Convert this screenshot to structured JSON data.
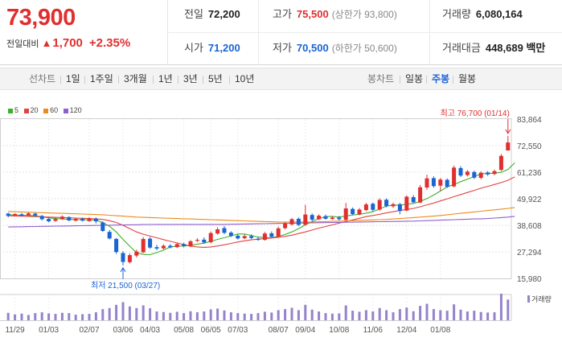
{
  "quote": {
    "current_price": "73,900",
    "change_label": "전일대비",
    "change_arrow": "▲",
    "change_value": "1,700",
    "change_pct": "+2.35%"
  },
  "stats": {
    "prev_close": {
      "label": "전일",
      "value": "72,200"
    },
    "open": {
      "label": "시가",
      "value": "71,200"
    },
    "high": {
      "label": "고가",
      "value": "75,500",
      "sub": "(상한가 93,800)"
    },
    "low": {
      "label": "저가",
      "value": "70,500",
      "sub": "(하한가 50,600)"
    },
    "volume": {
      "label": "거래량",
      "value": "6,080,164"
    },
    "amount": {
      "label": "거래대금",
      "value": "448,689",
      "unit": "백만"
    }
  },
  "periods": {
    "line_label": "선차트",
    "line_items": [
      "1일",
      "1주일",
      "3개월",
      "1년",
      "3년",
      "5년",
      "10년"
    ],
    "candle_label": "봉차트",
    "candle_items": [
      "일봉",
      "주봉",
      "월봉"
    ],
    "selected": "주봉"
  },
  "legend": [
    {
      "label": "5",
      "color": "#3cb02e"
    },
    {
      "label": "20",
      "color": "#e34242"
    },
    {
      "label": "60",
      "color": "#ee8a1c"
    },
    {
      "label": "120",
      "color": "#8f5fcf"
    }
  ],
  "colors": {
    "up": "#e12f2f",
    "down": "#1a64d4",
    "volume": "#9583cc"
  },
  "chart_data": {
    "type": "candlestick",
    "title": "",
    "y_ticks": [
      "83,864",
      "72,550",
      "61,236",
      "49,922",
      "38,608",
      "27,294",
      "15,980"
    ],
    "ylim": [
      15980,
      83864
    ],
    "x_labels": [
      "11/29",
      "01/03",
      "02/07",
      "03/06",
      "04/03",
      "05/08",
      "06/05",
      "07/03",
      "08/07",
      "09/04",
      "10/08",
      "11/06",
      "12/04",
      "01/08"
    ],
    "max_annotation": "최고 76,700 (01/14)",
    "min_annotation": "최저 21,500 (03/27)",
    "volume_label": "거래량",
    "candles": [
      {
        "o": 43600,
        "c": 42600,
        "h": 44000,
        "l": 42000,
        "v": 0.28
      },
      {
        "o": 42800,
        "c": 43400,
        "h": 43800,
        "l": 42400,
        "v": 0.22
      },
      {
        "o": 43300,
        "c": 42700,
        "h": 43900,
        "l": 42300,
        "v": 0.25
      },
      {
        "o": 42900,
        "c": 43700,
        "h": 44100,
        "l": 42600,
        "v": 0.2
      },
      {
        "o": 43600,
        "c": 42800,
        "h": 44000,
        "l": 42200,
        "v": 0.27
      },
      {
        "o": 42600,
        "c": 41200,
        "h": 43000,
        "l": 40600,
        "v": 0.3
      },
      {
        "o": 41300,
        "c": 40300,
        "h": 41800,
        "l": 39900,
        "v": 0.26
      },
      {
        "o": 40500,
        "c": 41300,
        "h": 41900,
        "l": 40100,
        "v": 0.24
      },
      {
        "o": 41200,
        "c": 42300,
        "h": 42800,
        "l": 40900,
        "v": 0.28
      },
      {
        "o": 42100,
        "c": 40700,
        "h": 42500,
        "l": 40300,
        "v": 0.27
      },
      {
        "o": 40600,
        "c": 41400,
        "h": 41800,
        "l": 40200,
        "v": 0.21
      },
      {
        "o": 41400,
        "c": 40600,
        "h": 41900,
        "l": 40200,
        "v": 0.23
      },
      {
        "o": 40400,
        "c": 41500,
        "h": 42000,
        "l": 40100,
        "v": 0.24
      },
      {
        "o": 41400,
        "c": 40300,
        "h": 41900,
        "l": 39400,
        "v": 0.3
      },
      {
        "o": 39800,
        "c": 36200,
        "h": 40300,
        "l": 35800,
        "v": 0.42
      },
      {
        "o": 35800,
        "c": 33000,
        "h": 36600,
        "l": 32600,
        "v": 0.46
      },
      {
        "o": 32800,
        "c": 27200,
        "h": 33200,
        "l": 26400,
        "v": 0.58
      },
      {
        "o": 26800,
        "c": 23000,
        "h": 27600,
        "l": 21500,
        "v": 0.68
      },
      {
        "o": 22900,
        "c": 25900,
        "h": 26700,
        "l": 22300,
        "v": 0.52
      },
      {
        "o": 25700,
        "c": 27400,
        "h": 28200,
        "l": 24900,
        "v": 0.46
      },
      {
        "o": 27100,
        "c": 32800,
        "h": 33600,
        "l": 26800,
        "v": 0.56
      },
      {
        "o": 32900,
        "c": 29100,
        "h": 33600,
        "l": 28600,
        "v": 0.45
      },
      {
        "o": 29300,
        "c": 28700,
        "h": 30300,
        "l": 28000,
        "v": 0.33
      },
      {
        "o": 28800,
        "c": 29900,
        "h": 30500,
        "l": 28300,
        "v": 0.31
      },
      {
        "o": 29900,
        "c": 29200,
        "h": 30600,
        "l": 28700,
        "v": 0.28
      },
      {
        "o": 29300,
        "c": 30600,
        "h": 31100,
        "l": 28900,
        "v": 0.32
      },
      {
        "o": 30600,
        "c": 29800,
        "h": 31200,
        "l": 29200,
        "v": 0.27
      },
      {
        "o": 29600,
        "c": 31800,
        "h": 32300,
        "l": 29300,
        "v": 0.34
      },
      {
        "o": 32000,
        "c": 32400,
        "h": 33100,
        "l": 31500,
        "v": 0.3
      },
      {
        "o": 32500,
        "c": 31300,
        "h": 33500,
        "l": 30800,
        "v": 0.33
      },
      {
        "o": 31400,
        "c": 35300,
        "h": 36000,
        "l": 30900,
        "v": 0.41
      },
      {
        "o": 35100,
        "c": 36900,
        "h": 37800,
        "l": 34600,
        "v": 0.44
      },
      {
        "o": 37400,
        "c": 35400,
        "h": 38300,
        "l": 34900,
        "v": 0.37
      },
      {
        "o": 35500,
        "c": 34100,
        "h": 36100,
        "l": 33600,
        "v": 0.3
      },
      {
        "o": 34200,
        "c": 33000,
        "h": 34800,
        "l": 32600,
        "v": 0.27
      },
      {
        "o": 33100,
        "c": 34000,
        "h": 34700,
        "l": 32700,
        "v": 0.25
      },
      {
        "o": 34000,
        "c": 33200,
        "h": 34800,
        "l": 32700,
        "v": 0.24
      },
      {
        "o": 32900,
        "c": 32400,
        "h": 33600,
        "l": 32000,
        "v": 0.27
      },
      {
        "o": 32400,
        "c": 35100,
        "h": 35800,
        "l": 32100,
        "v": 0.32
      },
      {
        "o": 35200,
        "c": 33700,
        "h": 36000,
        "l": 33300,
        "v": 0.29
      },
      {
        "o": 33800,
        "c": 37300,
        "h": 38000,
        "l": 33500,
        "v": 0.38
      },
      {
        "o": 37400,
        "c": 39300,
        "h": 40100,
        "l": 36900,
        "v": 0.42
      },
      {
        "o": 39000,
        "c": 41200,
        "h": 41800,
        "l": 38500,
        "v": 0.47
      },
      {
        "o": 41400,
        "c": 38800,
        "h": 41900,
        "l": 38300,
        "v": 0.38
      },
      {
        "o": 38900,
        "c": 43200,
        "h": 47300,
        "l": 38500,
        "v": 0.58
      },
      {
        "o": 43000,
        "c": 41000,
        "h": 43700,
        "l": 40200,
        "v": 0.4
      },
      {
        "o": 41200,
        "c": 42700,
        "h": 43300,
        "l": 40800,
        "v": 0.33
      },
      {
        "o": 42500,
        "c": 41400,
        "h": 43200,
        "l": 41000,
        "v": 0.27
      },
      {
        "o": 41300,
        "c": 41900,
        "h": 42600,
        "l": 40900,
        "v": 0.25
      },
      {
        "o": 41900,
        "c": 41200,
        "h": 42600,
        "l": 40700,
        "v": 0.26
      },
      {
        "o": 40900,
        "c": 45800,
        "h": 48100,
        "l": 40600,
        "v": 0.56
      },
      {
        "o": 45600,
        "c": 43400,
        "h": 46200,
        "l": 42900,
        "v": 0.36
      },
      {
        "o": 43200,
        "c": 45300,
        "h": 46000,
        "l": 42900,
        "v": 0.32
      },
      {
        "o": 45100,
        "c": 47500,
        "h": 48200,
        "l": 44600,
        "v": 0.38
      },
      {
        "o": 47800,
        "c": 45200,
        "h": 48300,
        "l": 44600,
        "v": 0.33
      },
      {
        "o": 45300,
        "c": 49400,
        "h": 50100,
        "l": 44800,
        "v": 0.46
      },
      {
        "o": 49500,
        "c": 46800,
        "h": 50100,
        "l": 46200,
        "v": 0.38
      },
      {
        "o": 46700,
        "c": 47600,
        "h": 48300,
        "l": 46000,
        "v": 0.3
      },
      {
        "o": 47600,
        "c": 44700,
        "h": 48200,
        "l": 43300,
        "v": 0.42
      },
      {
        "o": 44900,
        "c": 50800,
        "h": 51400,
        "l": 44600,
        "v": 0.48
      },
      {
        "o": 50600,
        "c": 48400,
        "h": 51500,
        "l": 48100,
        "v": 0.34
      },
      {
        "o": 48300,
        "c": 54800,
        "h": 55800,
        "l": 48000,
        "v": 0.54
      },
      {
        "o": 54700,
        "c": 58600,
        "h": 60200,
        "l": 53800,
        "v": 0.62
      },
      {
        "o": 58700,
        "c": 55300,
        "h": 59500,
        "l": 54600,
        "v": 0.42
      },
      {
        "o": 55500,
        "c": 58100,
        "h": 58800,
        "l": 53300,
        "v": 0.38
      },
      {
        "o": 58000,
        "c": 55000,
        "h": 58600,
        "l": 54500,
        "v": 0.36
      },
      {
        "o": 55200,
        "c": 63200,
        "h": 64100,
        "l": 54800,
        "v": 0.6
      },
      {
        "o": 63000,
        "c": 59800,
        "h": 63800,
        "l": 59200,
        "v": 0.4
      },
      {
        "o": 60000,
        "c": 61500,
        "h": 62200,
        "l": 59400,
        "v": 0.33
      },
      {
        "o": 61300,
        "c": 58900,
        "h": 61900,
        "l": 58300,
        "v": 0.36
      },
      {
        "o": 58800,
        "c": 61000,
        "h": 61600,
        "l": 58200,
        "v": 0.31
      },
      {
        "o": 61100,
        "c": 60300,
        "h": 61700,
        "l": 59700,
        "v": 0.29
      },
      {
        "o": 60500,
        "c": 61700,
        "h": 62300,
        "l": 59900,
        "v": 0.3
      },
      {
        "o": 62200,
        "c": 68200,
        "h": 69000,
        "l": 61700,
        "v": 1.0
      },
      {
        "o": 70500,
        "c": 73900,
        "h": 76700,
        "l": 70400,
        "v": 0.78
      }
    ],
    "ma": {
      "5": [
        43100,
        43000,
        42900,
        42800,
        42700,
        42200,
        41800,
        41500,
        41300,
        41100,
        41000,
        41000,
        40900,
        40800,
        39800,
        38200,
        35800,
        32600,
        29700,
        27000,
        26200,
        26100,
        27000,
        28000,
        29400,
        29700,
        29800,
        30100,
        30600,
        31000,
        31800,
        32600,
        33300,
        34100,
        34900,
        34900,
        34300,
        33600,
        33400,
        33300,
        33900,
        34700,
        35800,
        37200,
        38800,
        40200,
        41500,
        42300,
        42400,
        42100,
        42600,
        43000,
        43300,
        43800,
        44400,
        45600,
        46800,
        47200,
        47200,
        47600,
        47900,
        48800,
        50000,
        51500,
        53200,
        55000,
        56000,
        57200,
        58300,
        59400,
        60500,
        60700,
        60800,
        61200,
        62400,
        65200
      ],
      "20": [
        42700,
        42600,
        42500,
        42400,
        42300,
        42200,
        42100,
        42000,
        41900,
        41800,
        41700,
        41600,
        41500,
        41400,
        41100,
        40600,
        39800,
        38600,
        37200,
        35800,
        34800,
        34000,
        33300,
        32500,
        31800,
        31100,
        30400,
        29800,
        29400,
        29200,
        29400,
        29800,
        30300,
        30900,
        31500,
        32000,
        32400,
        32700,
        33000,
        33200,
        33500,
        33900,
        34400,
        35100,
        35800,
        36600,
        37400,
        38100,
        38800,
        39500,
        40200,
        40900,
        41600,
        42300,
        42800,
        43300,
        43900,
        44400,
        44900,
        45300,
        45800,
        46500,
        47300,
        48100,
        49000,
        49900,
        50800,
        51700,
        52600,
        53500,
        54400,
        55200,
        56000,
        56800,
        57800,
        59200
      ],
      "60": [
        44500,
        44400,
        44300,
        44200,
        44100,
        44000,
        43900,
        43800,
        43700,
        43600,
        43500,
        43400,
        43300,
        43200,
        43100,
        42900,
        42700,
        42500,
        42300,
        42100,
        42000,
        41900,
        41800,
        41700,
        41600,
        41500,
        41400,
        41300,
        41200,
        41100,
        41000,
        40900,
        40800,
        40700,
        40600,
        40500,
        40400,
        40300,
        40200,
        40100,
        40000,
        40000,
        40000,
        40000,
        40000,
        40000,
        40100,
        40200,
        40300,
        40400,
        40500,
        40600,
        40700,
        40800,
        40900,
        41000,
        41100,
        41300,
        41500,
        41700,
        41900,
        42100,
        42300,
        42500,
        42800,
        43100,
        43400,
        43700,
        44000,
        44300,
        44600,
        44900,
        45200,
        45500,
        45800,
        46200
      ],
      "120": [
        37900,
        37950,
        38000,
        38050,
        38100,
        38150,
        38200,
        38250,
        38300,
        38350,
        38400,
        38450,
        38500,
        38550,
        38600,
        38650,
        38700,
        38750,
        38800,
        38850,
        38900,
        38950,
        39000,
        39000,
        39000,
        39000,
        39000,
        39000,
        39000,
        39000,
        39000,
        39000,
        39000,
        39050,
        39100,
        39150,
        39200,
        39250,
        39300,
        39350,
        39400,
        39450,
        39500,
        39550,
        39600,
        39650,
        39700,
        39750,
        39800,
        39850,
        39900,
        39950,
        40000,
        40050,
        40100,
        40150,
        40200,
        40250,
        40300,
        40350,
        40400,
        40500,
        40600,
        40700,
        40800,
        40900,
        41000,
        41100,
        41200,
        41300,
        41400,
        41500,
        41700,
        41900,
        42100,
        42400
      ]
    }
  }
}
